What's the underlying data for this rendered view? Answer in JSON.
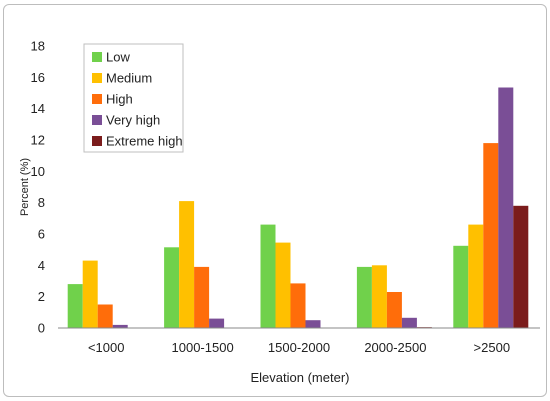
{
  "chart_data": {
    "type": "bar",
    "title": "",
    "xlabel": "Elevation (meter)",
    "ylabel": "Percent (%)",
    "ylim": [
      0,
      18
    ],
    "yticks": [
      0,
      2,
      4,
      6,
      8,
      10,
      12,
      14,
      16,
      18
    ],
    "grid": false,
    "legend_position": "top-left",
    "categories": [
      "<1000",
      "1000-1500",
      "1500-2000",
      "2000-2500",
      ">2500"
    ],
    "series": [
      {
        "name": "Low",
        "color": "#70d14b",
        "values": [
          2.8,
          5.15,
          6.6,
          3.9,
          5.25
        ]
      },
      {
        "name": "Medium",
        "color": "#ffc000",
        "values": [
          4.3,
          8.1,
          5.45,
          4.0,
          6.6
        ]
      },
      {
        "name": "High",
        "color": "#ff6d0a",
        "values": [
          1.5,
          3.9,
          2.85,
          2.3,
          11.8
        ]
      },
      {
        "name": "Very high",
        "color": "#7a4e96",
        "values": [
          0.2,
          0.6,
          0.5,
          0.65,
          15.35
        ]
      },
      {
        "name": "Extreme high",
        "color": "#7b1c1c",
        "values": [
          0.0,
          0.0,
          0.0,
          0.05,
          7.8
        ]
      }
    ]
  }
}
